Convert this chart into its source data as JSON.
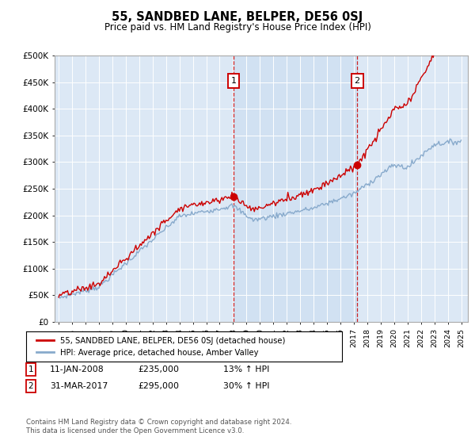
{
  "title": "55, SANDBED LANE, BELPER, DE56 0SJ",
  "subtitle": "Price paid vs. HM Land Registry's House Price Index (HPI)",
  "ylabel_ticks": [
    "£0",
    "£50K",
    "£100K",
    "£150K",
    "£200K",
    "£250K",
    "£300K",
    "£350K",
    "£400K",
    "£450K",
    "£500K"
  ],
  "ytick_values": [
    0,
    50000,
    100000,
    150000,
    200000,
    250000,
    300000,
    350000,
    400000,
    450000,
    500000
  ],
  "ylim": [
    0,
    500000
  ],
  "xlim_start": 1994.7,
  "xlim_end": 2025.5,
  "x_tick_years": [
    1995,
    1996,
    1997,
    1998,
    1999,
    2000,
    2001,
    2002,
    2003,
    2004,
    2005,
    2006,
    2007,
    2008,
    2009,
    2010,
    2011,
    2012,
    2013,
    2014,
    2015,
    2016,
    2017,
    2018,
    2019,
    2020,
    2021,
    2022,
    2023,
    2024,
    2025
  ],
  "transaction1_x": 2008.03,
  "transaction1_y": 235000,
  "transaction2_x": 2017.25,
  "transaction2_y": 295000,
  "bg_color": "#dce8f5",
  "shade_color": "#dce8f5",
  "red_line_color": "#cc0000",
  "blue_line_color": "#88aacc",
  "grid_color": "#cccccc",
  "legend_label1": "55, SANDBED LANE, BELPER, DE56 0SJ (detached house)",
  "legend_label2": "HPI: Average price, detached house, Amber Valley",
  "note1_date": "11-JAN-2008",
  "note1_price": "£235,000",
  "note1_hpi": "13% ↑ HPI",
  "note2_date": "31-MAR-2017",
  "note2_price": "£295,000",
  "note2_hpi": "30% ↑ HPI",
  "footer": "Contains HM Land Registry data © Crown copyright and database right 2024.\nThis data is licensed under the Open Government Licence v3.0."
}
